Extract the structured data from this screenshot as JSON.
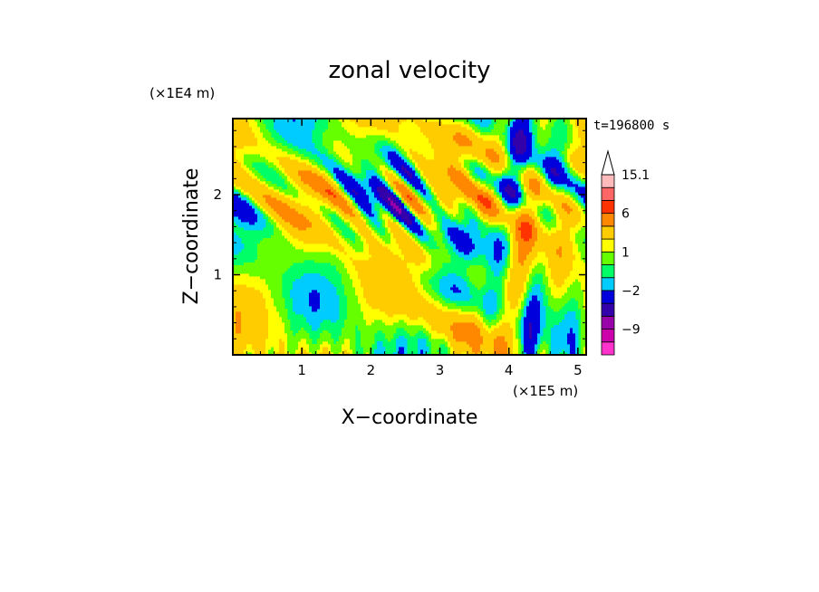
{
  "chart_data": {
    "type": "heatmap",
    "title": "zonal velocity",
    "xlabel": "X−coordinate",
    "ylabel": "Z−coordinate",
    "x_unit": "(×1E5 m)",
    "y_unit": "(×1E4 m)",
    "time_label": "t=196800 s",
    "xlim": [
      0,
      5.12
    ],
    "ylim": [
      0,
      2.95
    ],
    "x_ticks": [
      1,
      2,
      3,
      4,
      5
    ],
    "y_ticks": [
      1,
      2
    ],
    "x_tick_labels": [
      "1",
      "2",
      "3",
      "4",
      "5"
    ],
    "y_tick_labels": [
      "1",
      "2"
    ],
    "colorbar": {
      "labels": [
        "15.1",
        "6",
        "1",
        "−2",
        "−9"
      ],
      "levels": [
        -15,
        -12,
        -9,
        -6,
        -4,
        -2,
        -1,
        0,
        1,
        2,
        4,
        6,
        9,
        12,
        15.1
      ],
      "colors": [
        "#ff33cc",
        "#cc00aa",
        "#9900aa",
        "#3300aa",
        "#0000dd",
        "#00ccff",
        "#00ff66",
        "#66ff00",
        "#ffff00",
        "#ffcc00",
        "#ff8800",
        "#ff3300",
        "#ff6666",
        "#ffbbbb"
      ],
      "extend": "max"
    }
  }
}
